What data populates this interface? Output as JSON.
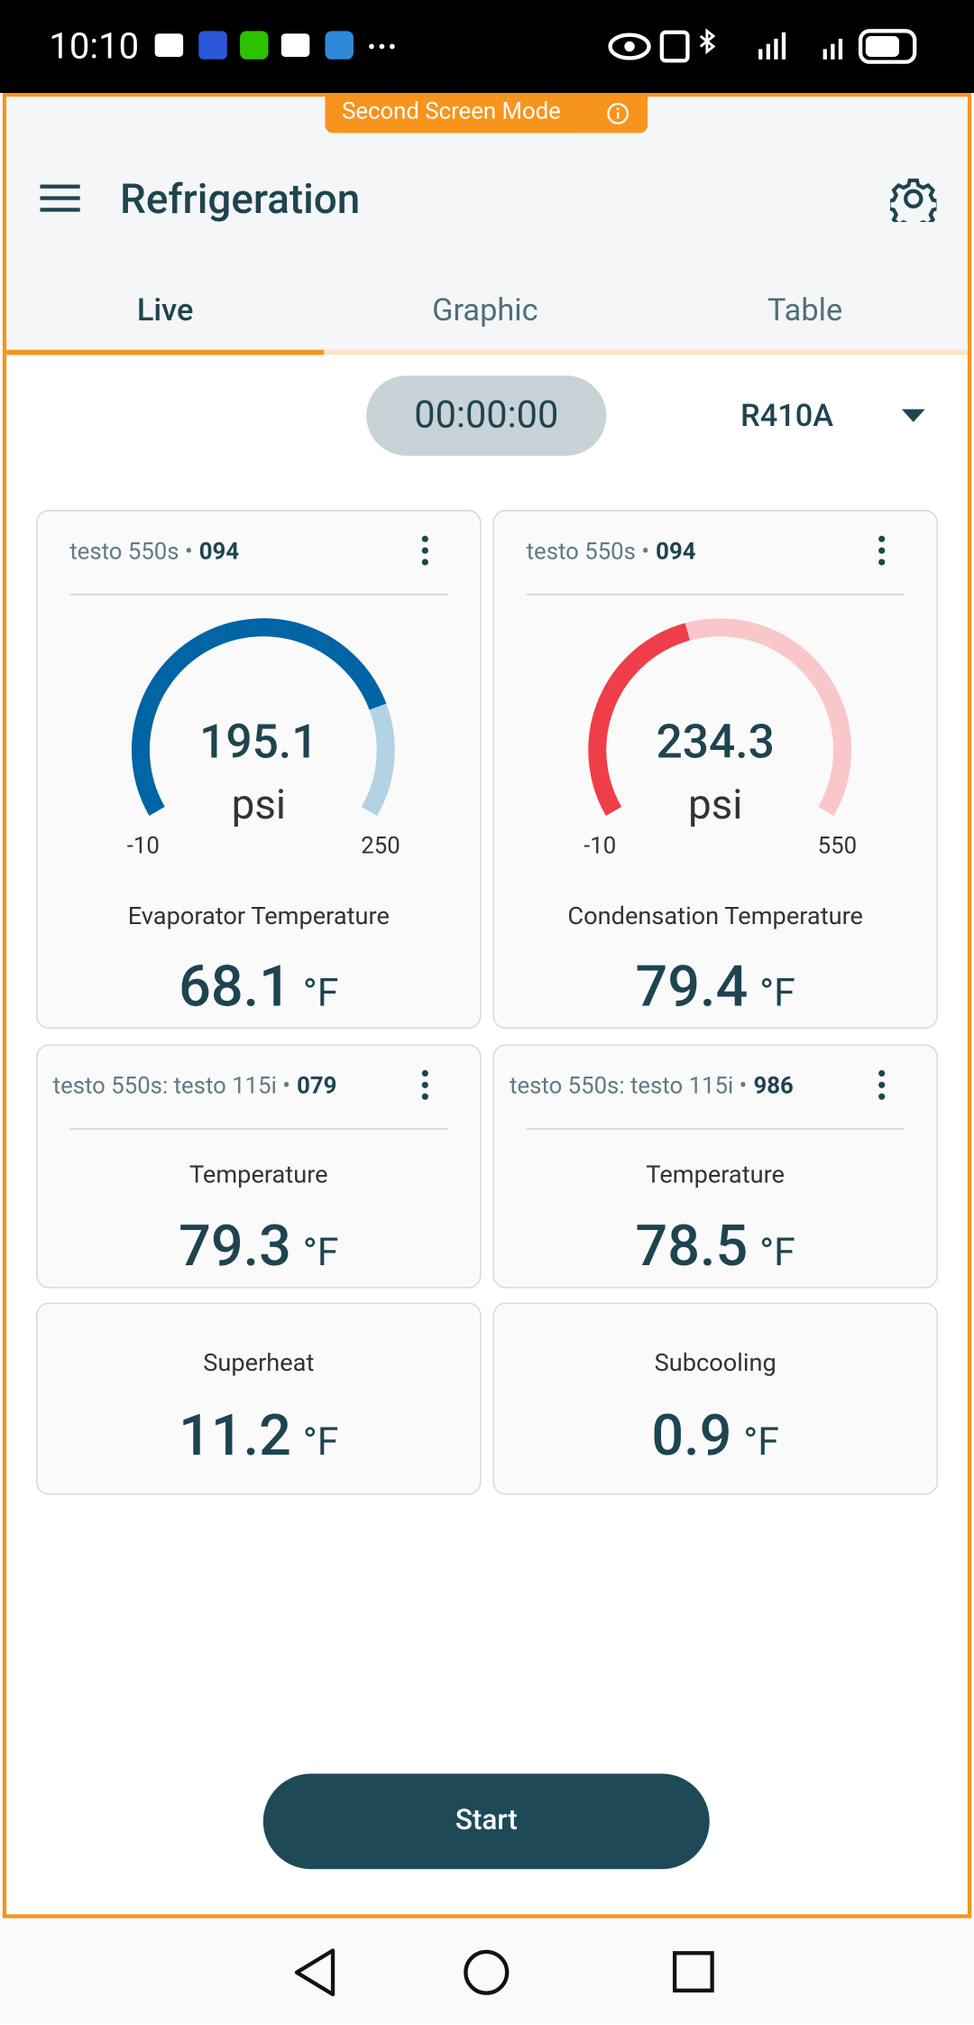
{
  "status_bar": {
    "time": "10:10"
  },
  "banner": "Second Screen Mode",
  "header": {
    "title": "Refrigeration"
  },
  "tabs": [
    "Live",
    "Graphic",
    "Table"
  ],
  "timer": "00:00:00",
  "refrigerant": "R410A",
  "gauge_cards": [
    {
      "device": "testo 550s •",
      "id": "094",
      "value": 195.1,
      "unit": "psi",
      "min": -10,
      "max": 250,
      "label": "Evaporator Temperature",
      "reading": 68.1,
      "reading_unit": "°F",
      "color": "#0064a5",
      "track_color": "#b3d2e4"
    },
    {
      "device": "testo 550s •",
      "id": "094",
      "value": 234.3,
      "unit": "psi",
      "min": -10,
      "max": 550,
      "label": "Condensation Temperature",
      "reading": 79.4,
      "reading_unit": "°F",
      "color": "#ef3e4a",
      "track_color": "#f9c6ca"
    }
  ],
  "probe_cards": [
    {
      "device": "testo 550s: testo 115i •",
      "id": "079",
      "label": "Temperature",
      "reading": 79.3,
      "reading_unit": "°F"
    },
    {
      "device": "testo 550s: testo 115i •",
      "id": "986",
      "label": "Temperature",
      "reading": 78.5,
      "reading_unit": "°F"
    }
  ],
  "calc_cards": [
    {
      "label": "Superheat",
      "reading": 11.2,
      "reading_unit": "°F"
    },
    {
      "label": "Subcooling",
      "reading": 0.9,
      "reading_unit": "°F"
    }
  ],
  "button": "Start"
}
